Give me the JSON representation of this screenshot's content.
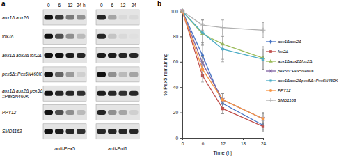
{
  "chart_data": {
    "type": "line",
    "annotations": [
      "b"
    ],
    "x_label": "Time (h)",
    "y_label": "% Pex5 remaining",
    "x": [
      0,
      6,
      12,
      24
    ],
    "xlim": [
      0,
      24
    ],
    "xticks": [
      0,
      6,
      12,
      18,
      24
    ],
    "ylim": [
      0,
      100
    ],
    "yticks": [
      0,
      20,
      40,
      60,
      80,
      100
    ],
    "legend": "right",
    "series": [
      {
        "name": "aox1Δaox2Δ",
        "color": "#4472c4",
        "marker": "diamond",
        "values": [
          100,
          65,
          27,
          10
        ],
        "errors": [
          0,
          10,
          8,
          5
        ]
      },
      {
        "name": "fox2Δ",
        "color": "#c0504d",
        "marker": "square",
        "values": [
          100,
          49,
          23,
          9
        ],
        "errors": [
          0,
          5,
          4,
          3
        ]
      },
      {
        "name": "aox1Δaox2Δfox2Δ",
        "color": "#9bbb59",
        "marker": "triangle",
        "values": [
          100,
          82,
          74,
          63
        ],
        "errors": [
          0,
          8,
          12,
          9
        ]
      },
      {
        "name": "pex5Δ::Pex5N460K",
        "color": "#8064a2",
        "marker": "x",
        "values": [
          100,
          59,
          30,
          15
        ],
        "errors": [
          0,
          5,
          5,
          4
        ]
      },
      {
        "name": "aox1Δaox2Δpex5Δ::Pex5N460K",
        "color": "#4bacc6",
        "marker": "star",
        "values": [
          100,
          83,
          70,
          62
        ],
        "errors": [
          0,
          10,
          10,
          8
        ]
      },
      {
        "name": "PPY12",
        "color": "#f79646",
        "marker": "circle",
        "values": [
          100,
          54,
          30,
          15
        ],
        "errors": [
          0,
          6,
          5,
          5
        ]
      },
      {
        "name": "SMD1163",
        "color": "#b0b0b0",
        "marker": "plus",
        "values": [
          100,
          89,
          87,
          85
        ],
        "errors": [
          0,
          4,
          6,
          6
        ]
      }
    ]
  },
  "blot": {
    "panel_label": "a",
    "headers": [
      [
        "0",
        "6",
        "12",
        "24 h"
      ],
      [
        "0",
        "6",
        "12",
        "24"
      ]
    ],
    "antibodies": [
      "anti-Pex5",
      "anti-Pot1"
    ],
    "rows": [
      {
        "label": [
          "aox1Δ aox2Δ"
        ],
        "bands": [
          [
            1,
            0.8,
            0.5,
            0.4
          ],
          [
            0.9,
            0.3,
            0.05,
            0.05
          ]
        ]
      },
      {
        "label": [
          "fox2Δ"
        ],
        "bands": [
          [
            1,
            0.7,
            0.4,
            0.2
          ],
          [
            0.9,
            0.15,
            0.05,
            0.02
          ]
        ]
      },
      {
        "label": [
          "aox1Δ aox2Δ fox2Δ"
        ],
        "bands": [
          [
            1,
            1,
            0.95,
            0.9
          ],
          [
            0.95,
            0.95,
            0.9,
            0.9
          ]
        ]
      },
      {
        "label": [
          "pex5Δ::Pex5N460K"
        ],
        "bands": [
          [
            1,
            0.6,
            0.35,
            0.1
          ],
          [
            1,
            0.4,
            0.2,
            0.3
          ]
        ]
      },
      {
        "label": [
          "aox1Δ aox2Δ pex5Δ",
          "::Pex5N460K"
        ],
        "bands": [
          [
            1,
            0.9,
            0.9,
            0.85
          ],
          [
            0.95,
            0.9,
            0.85,
            0.9
          ]
        ]
      },
      {
        "label": [
          "PPY12"
        ],
        "bands": [
          [
            1,
            0.7,
            0.4,
            0.2
          ],
          [
            0.9,
            0.4,
            0.3,
            0.1
          ]
        ]
      },
      {
        "label": [
          "SMD1163"
        ],
        "bands": [
          [
            1,
            0.95,
            0.9,
            0.85
          ],
          [
            0.9,
            0.9,
            0.9,
            0.9
          ]
        ]
      }
    ]
  }
}
